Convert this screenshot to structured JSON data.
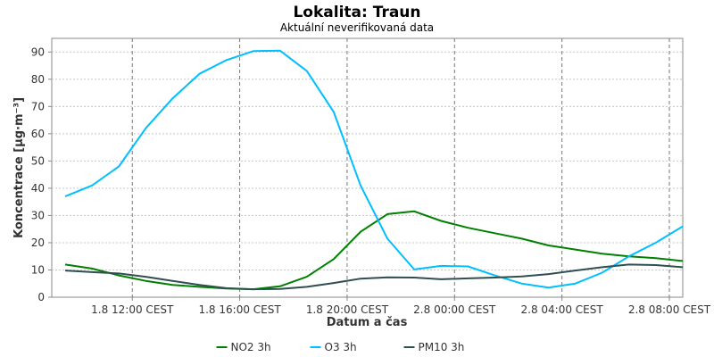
{
  "chart_data": {
    "type": "line",
    "title": "Lokalita: Traun",
    "subtitle": "Aktuální neverifikovaná data",
    "xlabel": "Datum a čas",
    "ylabel": "Koncentrace [µg·m⁻³]",
    "ylim": [
      0,
      95
    ],
    "yticks": [
      0,
      10,
      20,
      30,
      40,
      50,
      60,
      70,
      80,
      90
    ],
    "xlim": [
      9,
      32.5
    ],
    "xticks": [
      {
        "x": 12,
        "label": "1.8 12:00 CEST"
      },
      {
        "x": 16,
        "label": "1.8 16:00 CEST"
      },
      {
        "x": 20,
        "label": "1.8 20:00 CEST"
      },
      {
        "x": 24,
        "label": "2.8 00:00 CEST"
      },
      {
        "x": 28,
        "label": "2.8 04:00 CEST"
      },
      {
        "x": 32,
        "label": "2.8 08:00 CEST"
      }
    ],
    "grid": true,
    "legend_position": "bottom",
    "x": [
      9.5,
      10.5,
      11.5,
      12.5,
      13.5,
      14.5,
      15.5,
      16.5,
      17.5,
      18.5,
      19.5,
      20.5,
      21.5,
      22.5,
      23.5,
      24.5,
      25.5,
      26.5,
      27.5,
      28.5,
      29.5,
      30.5,
      31.5,
      32.5
    ],
    "series": [
      {
        "name": "NO2 3h",
        "color": "#008000",
        "values": [
          12,
          10.5,
          8,
          6,
          4.5,
          3.8,
          3.2,
          2.9,
          4,
          7.5,
          14,
          24,
          30.5,
          31.5,
          28,
          25.5,
          23.5,
          21.5,
          19,
          17.5,
          16,
          15,
          14.3,
          13.3
        ]
      },
      {
        "name": "O3 3h",
        "color": "#00bfff",
        "values": [
          37,
          41,
          48,
          62,
          73,
          82,
          87,
          90.3,
          90.5,
          83,
          68,
          41,
          21.5,
          10.2,
          11.5,
          11.3,
          8,
          5,
          3.5,
          5,
          9,
          15,
          20,
          26
        ]
      },
      {
        "name": "PM10 3h",
        "color": "#2f4f4f",
        "values": [
          9.8,
          9.2,
          8.7,
          7.5,
          6,
          4.5,
          3.3,
          2.9,
          3,
          3.8,
          5.2,
          6.8,
          7.3,
          7.2,
          6.6,
          6.9,
          7.2,
          7.6,
          8.5,
          9.8,
          11,
          12,
          11.8,
          11
        ]
      }
    ]
  }
}
